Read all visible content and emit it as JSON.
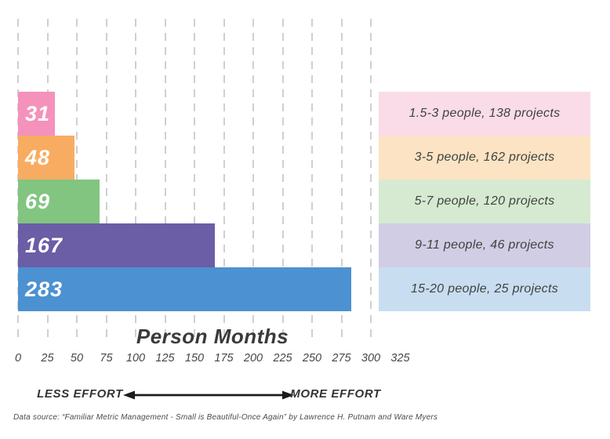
{
  "chart_data": {
    "type": "bar",
    "orientation": "horizontal",
    "title": "",
    "xlabel": "Person Months",
    "ylabel": "",
    "x_ticks": [
      "0",
      "25",
      "50",
      "75",
      "100",
      "125",
      "150",
      "175",
      "200",
      "225",
      "250",
      "275",
      "300",
      "325"
    ],
    "xlim": [
      0,
      325
    ],
    "grid": {
      "axis": "x",
      "style": "dashed",
      "color": "#c7c7c7",
      "interval": 25,
      "last_gridline_value": 300
    },
    "categories": [
      "1.5-3 people",
      "3-5 people",
      "5-7 people",
      "9-11 people",
      "15-20 people"
    ],
    "values": [
      31,
      48,
      69,
      167,
      283
    ],
    "bars": [
      {
        "value": 31,
        "value_label": "31",
        "group": "1.5-3 people, 138 projects",
        "bar_color": "#f492bb",
        "legend_color": "#fadce9"
      },
      {
        "value": 48,
        "value_label": "48",
        "group": "3-5 people, 162 projects",
        "bar_color": "#f8ac62",
        "legend_color": "#fce3c3"
      },
      {
        "value": 69,
        "value_label": "69",
        "group": "5-7 people, 120 projects",
        "bar_color": "#82c581",
        "legend_color": "#d6ead1"
      },
      {
        "value": 167,
        "value_label": "167",
        "group": "9-11 people, 46 projects",
        "bar_color": "#6b5da6",
        "legend_color": "#d1cde5"
      },
      {
        "value": 283,
        "value_label": "283",
        "group": "15-20 people, 25 projects",
        "bar_color": "#4c91d1",
        "legend_color": "#c8ddf0"
      }
    ],
    "annotations": {
      "less": "LESS EFFORT",
      "more": "MORE EFFORT"
    },
    "legend_position": "right"
  },
  "footer": {
    "source": "Data source: “Familiar Metric Management - Small is Beautiful-Once Again” by Lawrence H. Putnam and Ware Myers"
  }
}
